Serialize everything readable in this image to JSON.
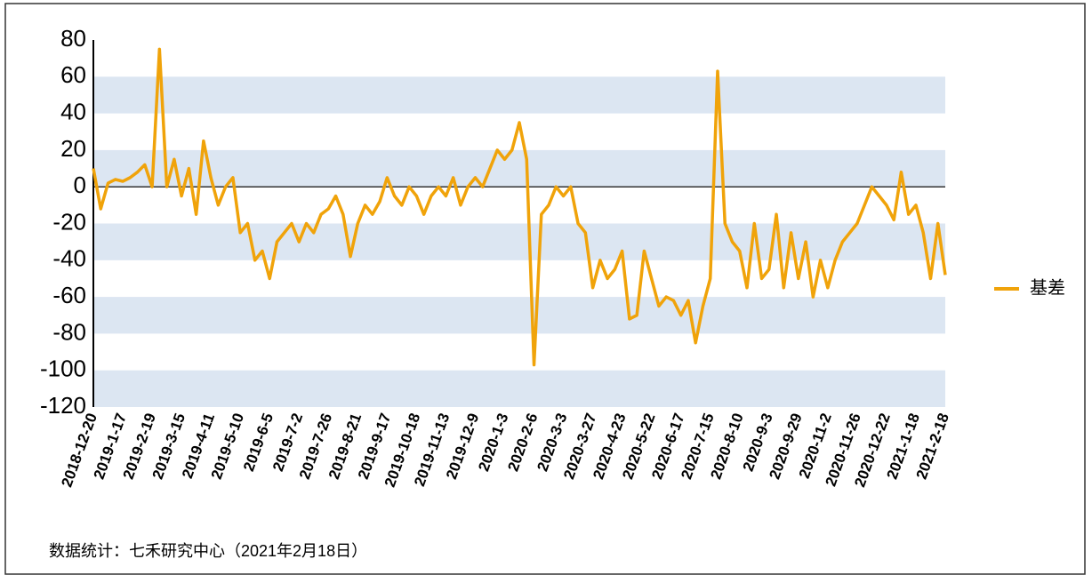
{
  "chart_data": {
    "type": "line",
    "categories": [
      "2018-12-20",
      null,
      null,
      null,
      "2019-1-17",
      null,
      null,
      null,
      "2019-2-19",
      null,
      null,
      null,
      "2019-3-15",
      null,
      null,
      null,
      "2019-4-11",
      null,
      null,
      null,
      "2019-5-10",
      null,
      null,
      null,
      "2019-6-5",
      null,
      null,
      null,
      "2019-7-2",
      null,
      null,
      null,
      "2019-7-26",
      null,
      null,
      null,
      "2019-8-21",
      null,
      null,
      null,
      "2019-9-17",
      null,
      null,
      null,
      "2019-10-18",
      null,
      null,
      null,
      "2019-11-13",
      null,
      null,
      null,
      "2019-12-9",
      null,
      null,
      null,
      "2020-1-3",
      null,
      null,
      null,
      "2020-2-6",
      null,
      null,
      null,
      "2020-3-3",
      null,
      null,
      null,
      "2020-3-27",
      null,
      null,
      null,
      "2020-4-23",
      null,
      null,
      null,
      "2020-5-22",
      null,
      null,
      null,
      "2020-6-17",
      null,
      null,
      null,
      "2020-7-15",
      null,
      null,
      null,
      "2020-8-10",
      null,
      null,
      null,
      "2020-9-3",
      null,
      null,
      null,
      "2020-9-29",
      null,
      null,
      null,
      "2020-11-2",
      null,
      null,
      null,
      "2020-11-26",
      null,
      null,
      null,
      "2020-12-22",
      null,
      null,
      null,
      "2021-1-18",
      null,
      null,
      null,
      "2021-2-18"
    ],
    "series": [
      {
        "name": "基差",
        "color": "#f0a30a",
        "values": [
          10,
          -12,
          2,
          4,
          3,
          5,
          8,
          12,
          0,
          75,
          0,
          15,
          -5,
          10,
          -15,
          25,
          5,
          -10,
          0,
          5,
          -25,
          -20,
          -40,
          -35,
          -50,
          -30,
          -25,
          -20,
          -30,
          -20,
          -25,
          -15,
          -12,
          -5,
          -15,
          -38,
          -20,
          -10,
          -15,
          -8,
          5,
          -5,
          -10,
          0,
          -5,
          -15,
          -5,
          0,
          -5,
          5,
          -10,
          0,
          5,
          0,
          10,
          20,
          15,
          20,
          35,
          15,
          -97,
          -15,
          -10,
          0,
          -5,
          0,
          -20,
          -25,
          -55,
          -40,
          -50,
          -45,
          -35,
          -72,
          -70,
          -35,
          -50,
          -65,
          -60,
          -62,
          -70,
          -62,
          -85,
          -65,
          -50,
          63,
          -20,
          -30,
          -35,
          -55,
          -20,
          -50,
          -45,
          -15,
          -55,
          -25,
          -50,
          -30,
          -60,
          -40,
          -55,
          -40,
          -30,
          -25,
          -20,
          -10,
          0,
          -5,
          -10,
          -18,
          8,
          -15,
          -10,
          -25,
          -50,
          -20,
          -48
        ]
      }
    ],
    "ylim": [
      -120,
      80
    ],
    "yticks": [
      -120,
      -100,
      -80,
      -60,
      -40,
      -20,
      0,
      20,
      40,
      60,
      80
    ],
    "bands": true,
    "legend": "right",
    "source": "数据统计：七禾研究中心（2021年2月18日）"
  }
}
